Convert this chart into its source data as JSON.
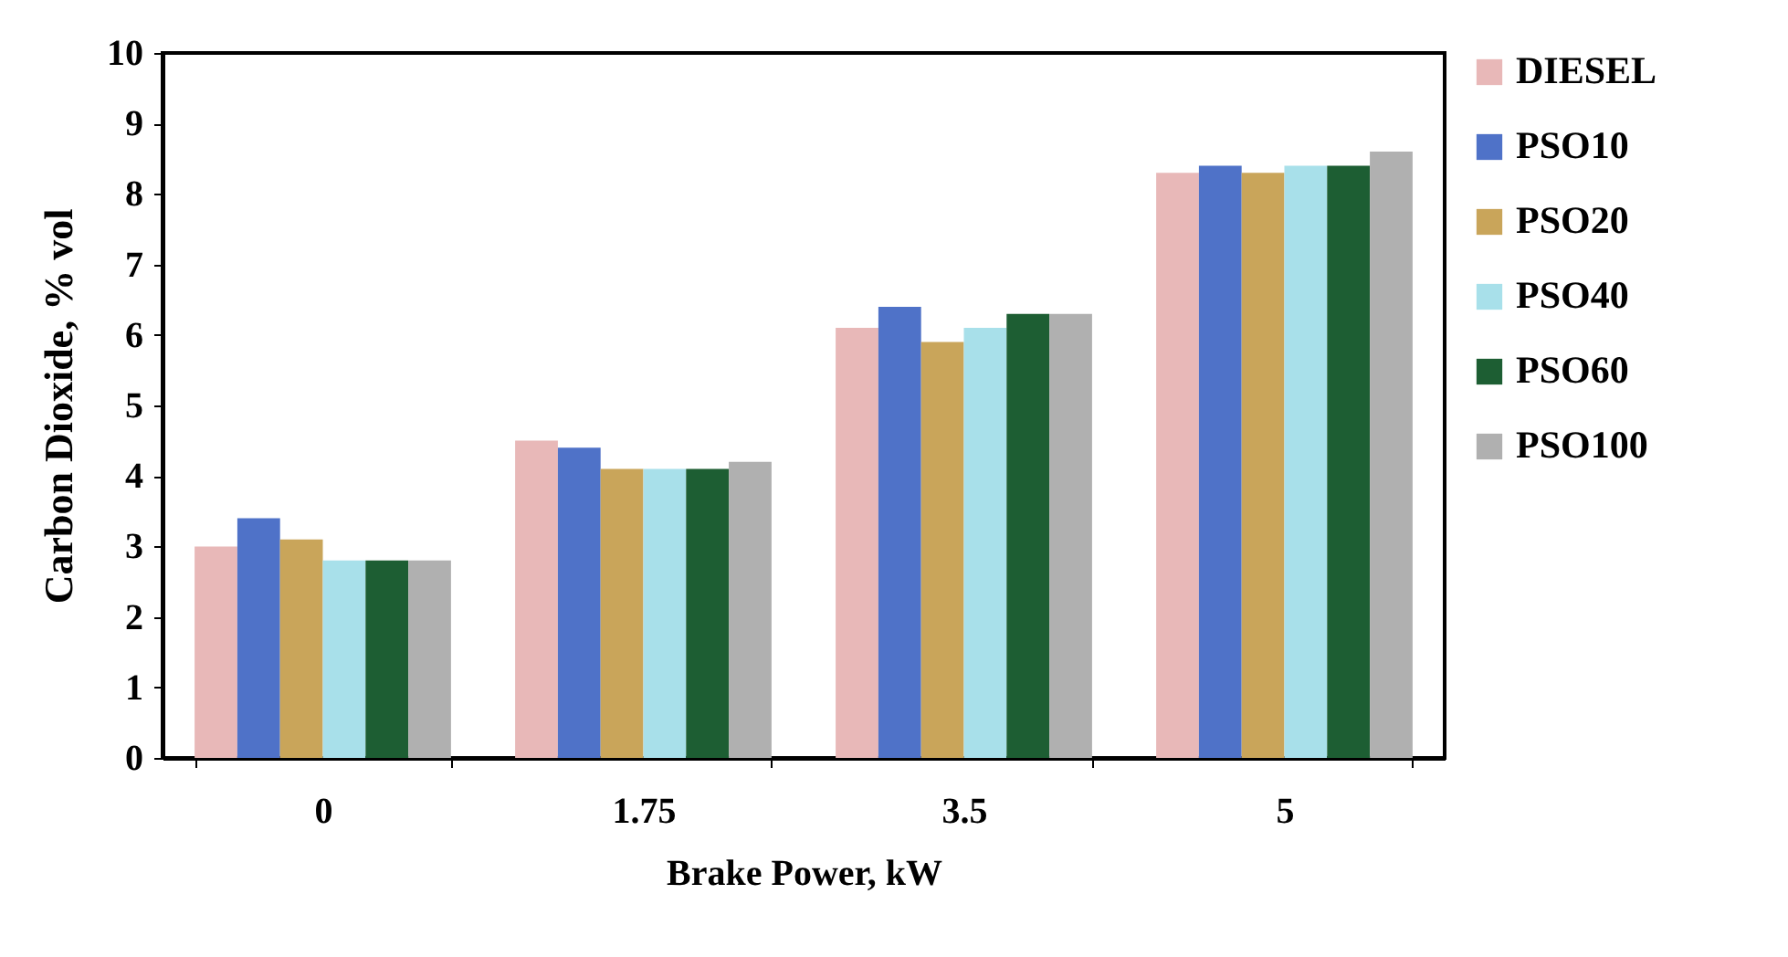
{
  "chart_data": {
    "type": "bar",
    "xlabel": "Brake Power, kW",
    "ylabel": "Carbon Dioxide,  % vol",
    "categories": [
      "0",
      "1.75",
      "3.5",
      "5"
    ],
    "series": [
      {
        "name": "DIESEL",
        "color": "#e8b8b8",
        "values": [
          3.0,
          4.5,
          6.1,
          8.3
        ]
      },
      {
        "name": "PSO10",
        "color": "#4f72c8",
        "values": [
          3.4,
          4.4,
          6.4,
          8.4
        ]
      },
      {
        "name": "PSO20",
        "color": "#c9a55a",
        "values": [
          3.1,
          4.1,
          5.9,
          8.3
        ]
      },
      {
        "name": "PSO40",
        "color": "#a8e0ea",
        "values": [
          2.8,
          4.1,
          6.1,
          8.4
        ]
      },
      {
        "name": "PSO60",
        "color": "#1d5e33",
        "values": [
          2.8,
          4.1,
          6.3,
          8.4
        ]
      },
      {
        "name": "PSO100",
        "color": "#b0b0b0",
        "values": [
          2.8,
          4.2,
          6.3,
          8.6
        ]
      }
    ],
    "ylim": [
      0,
      10
    ],
    "yticks": [
      0,
      1,
      2,
      3,
      4,
      5,
      6,
      7,
      8,
      9,
      10
    ],
    "grid": false,
    "legend": "right"
  }
}
